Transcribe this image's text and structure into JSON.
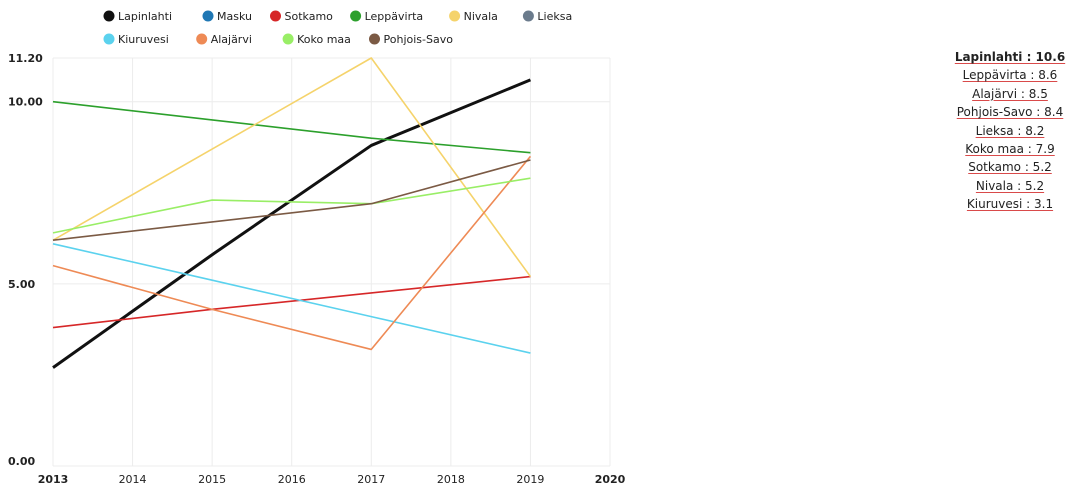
{
  "chart_data": {
    "type": "line",
    "x": [
      2013,
      2015,
      2017,
      2019
    ],
    "x_ticks": [
      "2013",
      "2014",
      "2015",
      "2016",
      "2017",
      "2018",
      "2019",
      "2020"
    ],
    "xlim": [
      2013,
      2020
    ],
    "y_ticks": [
      "0.00",
      "5.00",
      "10.00",
      "11.20"
    ],
    "ylim": [
      0,
      11.2
    ],
    "grid": true,
    "legend_position": "top",
    "series": [
      {
        "name": "Lapinlahti",
        "color": "#111111",
        "values": [
          2.7,
          5.8,
          8.8,
          10.6
        ],
        "bold": true
      },
      {
        "name": "Masku",
        "color": "#1f77b4",
        "values": [
          null,
          null,
          null,
          null
        ]
      },
      {
        "name": "Sotkamo",
        "color": "#d62728",
        "values": [
          3.8,
          4.3,
          4.75,
          5.2
        ]
      },
      {
        "name": "Leppävirta",
        "color": "#2ca02c",
        "values": [
          10.0,
          9.5,
          9.0,
          8.6
        ]
      },
      {
        "name": "Nivala",
        "color": "#f5d36b",
        "values": [
          6.2,
          8.7,
          11.2,
          5.2
        ]
      },
      {
        "name": "Lieksa",
        "color": "#6b7b8c",
        "values": [
          null,
          null,
          null,
          null
        ]
      },
      {
        "name": "Kiuruvesi",
        "color": "#5bd2ee",
        "values": [
          6.1,
          5.1,
          4.1,
          3.1
        ]
      },
      {
        "name": "Alajärvi",
        "color": "#ee8a55",
        "values": [
          5.5,
          4.3,
          3.2,
          8.5
        ]
      },
      {
        "name": "Koko maa",
        "color": "#99ee66",
        "values": [
          6.4,
          7.3,
          7.2,
          7.9
        ]
      },
      {
        "name": "Pohjois-Savo",
        "color": "#7b5a44",
        "values": [
          6.2,
          6.7,
          7.2,
          8.4
        ]
      }
    ],
    "ranking": [
      "Lapinlahti : 10.6",
      "Leppävirta : 8.6",
      "Alajärvi : 8.5",
      "Pohjois-Savo : 8.4",
      "Lieksa : 8.2",
      "Koko maa : 7.9",
      "Sotkamo : 5.2",
      "Nivala : 5.2",
      "Kiuruvesi : 3.1"
    ]
  }
}
